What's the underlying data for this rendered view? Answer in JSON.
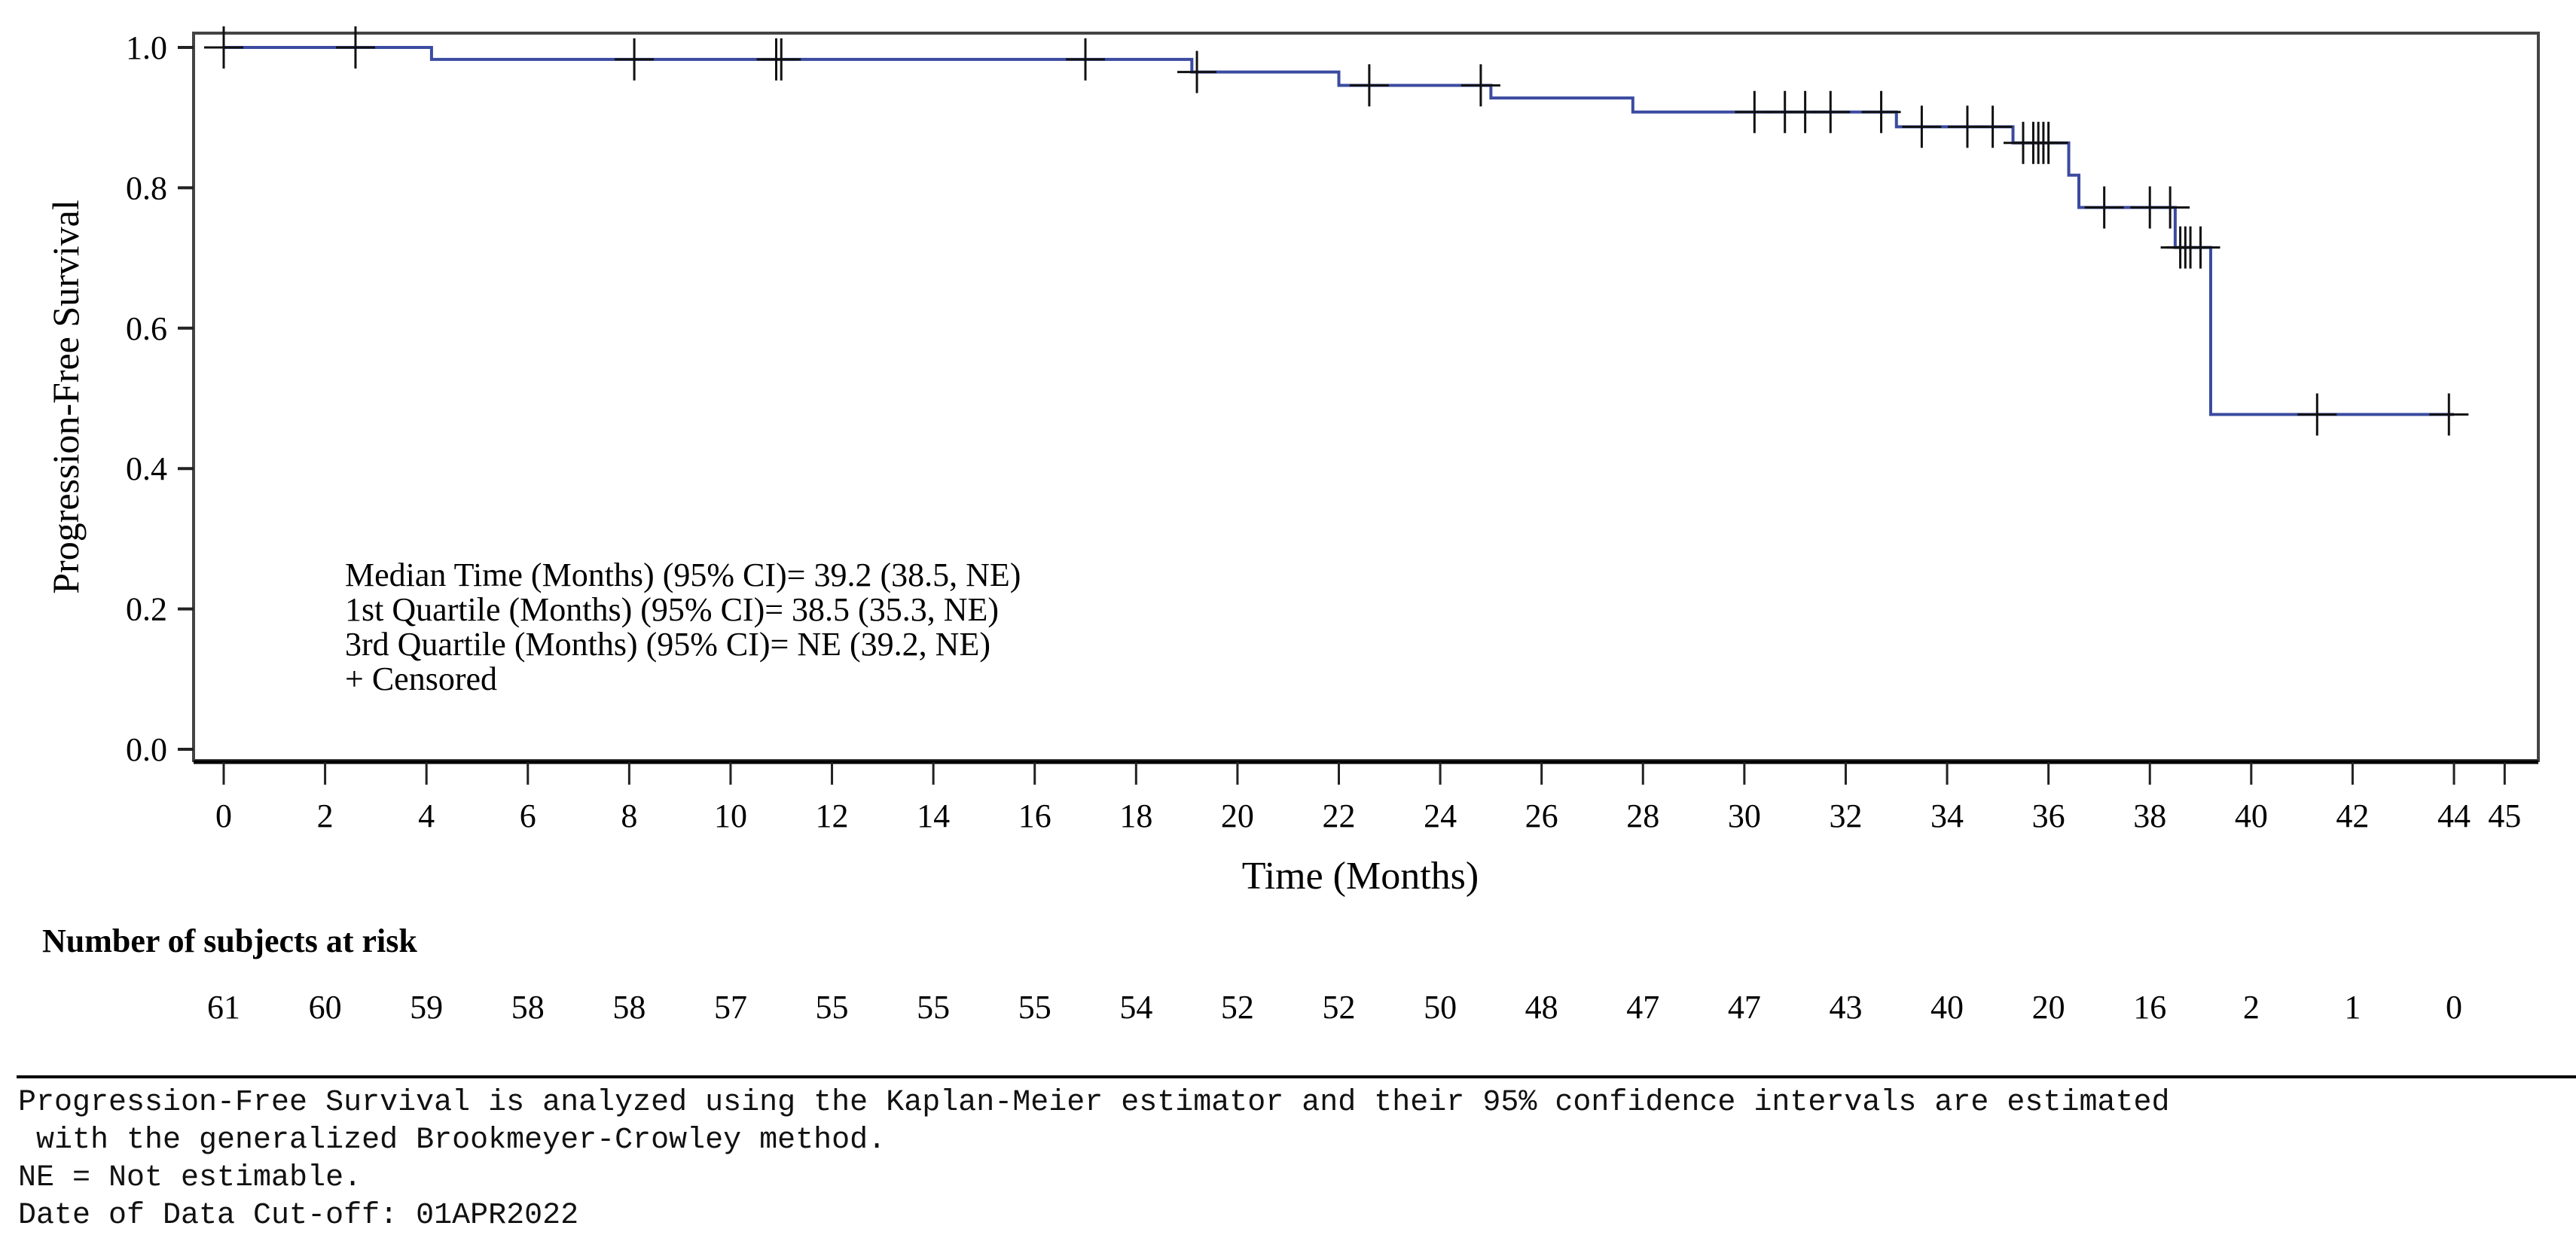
{
  "chart_data": {
    "type": "line",
    "subtype": "kaplan-meier-step",
    "title": "",
    "xlabel": "Time (Months)",
    "ylabel": "Progression-Free Survival",
    "xlim": [
      0,
      45
    ],
    "ylim": [
      0.0,
      1.0
    ],
    "x_ticks": [
      0,
      2,
      4,
      6,
      8,
      10,
      12,
      14,
      16,
      18,
      20,
      22,
      24,
      26,
      28,
      30,
      32,
      34,
      36,
      38,
      40,
      42,
      44,
      45
    ],
    "y_ticks": [
      "0.0",
      "0.2",
      "0.4",
      "0.6",
      "0.8",
      "1.0"
    ],
    "grid": false,
    "line_color": "#3b4ba0",
    "series": [
      {
        "name": "Progression-Free Survival",
        "steps": [
          {
            "x": 0.0,
            "y": 1.0
          },
          {
            "x": 4.1,
            "y": 0.983
          },
          {
            "x": 19.1,
            "y": 0.965
          },
          {
            "x": 22.0,
            "y": 0.946
          },
          {
            "x": 25.0,
            "y": 0.928
          },
          {
            "x": 27.8,
            "y": 0.908
          },
          {
            "x": 33.0,
            "y": 0.887
          },
          {
            "x": 35.3,
            "y": 0.864
          },
          {
            "x": 36.4,
            "y": 0.818
          },
          {
            "x": 36.6,
            "y": 0.772
          },
          {
            "x": 38.5,
            "y": 0.715
          },
          {
            "x": 39.2,
            "y": 0.477
          },
          {
            "x": 44.0,
            "y": 0.477
          }
        ],
        "censored": [
          {
            "x": 0.0,
            "y": 1.0
          },
          {
            "x": 2.6,
            "y": 1.0
          },
          {
            "x": 8.1,
            "y": 0.983
          },
          {
            "x": 10.9,
            "y": 0.983
          },
          {
            "x": 11.0,
            "y": 0.983
          },
          {
            "x": 17.0,
            "y": 0.983
          },
          {
            "x": 19.2,
            "y": 0.965
          },
          {
            "x": 22.6,
            "y": 0.946
          },
          {
            "x": 24.8,
            "y": 0.946
          },
          {
            "x": 30.2,
            "y": 0.908
          },
          {
            "x": 30.8,
            "y": 0.908
          },
          {
            "x": 31.2,
            "y": 0.908
          },
          {
            "x": 31.7,
            "y": 0.908
          },
          {
            "x": 32.7,
            "y": 0.908
          },
          {
            "x": 33.5,
            "y": 0.887
          },
          {
            "x": 34.4,
            "y": 0.887
          },
          {
            "x": 34.9,
            "y": 0.887
          },
          {
            "x": 35.5,
            "y": 0.864
          },
          {
            "x": 35.7,
            "y": 0.864
          },
          {
            "x": 35.8,
            "y": 0.864
          },
          {
            "x": 35.9,
            "y": 0.864
          },
          {
            "x": 36.0,
            "y": 0.864
          },
          {
            "x": 37.1,
            "y": 0.772
          },
          {
            "x": 38.0,
            "y": 0.772
          },
          {
            "x": 38.4,
            "y": 0.772
          },
          {
            "x": 38.6,
            "y": 0.715
          },
          {
            "x": 38.7,
            "y": 0.715
          },
          {
            "x": 38.8,
            "y": 0.715
          },
          {
            "x": 39.0,
            "y": 0.715
          },
          {
            "x": 41.3,
            "y": 0.477
          },
          {
            "x": 43.9,
            "y": 0.477
          }
        ]
      }
    ],
    "annotations": [
      "Median Time (Months) (95% CI)= 39.2 (38.5, NE)",
      "1st Quartile (Months) (95% CI)= 38.5 (35.3, NE)",
      "3rd Quartile (Months) (95% CI)= NE (39.2, NE)",
      "+ Censored"
    ],
    "risk_table": {
      "label": "Number of subjects at risk",
      "times": [
        0,
        2,
        4,
        6,
        8,
        10,
        12,
        14,
        16,
        18,
        20,
        22,
        24,
        26,
        28,
        30,
        32,
        34,
        36,
        38,
        40,
        42,
        44
      ],
      "counts": [
        61,
        60,
        59,
        58,
        58,
        57,
        55,
        55,
        55,
        54,
        52,
        52,
        50,
        48,
        47,
        47,
        43,
        40,
        20,
        16,
        2,
        1,
        0
      ]
    }
  },
  "labels": {
    "xlabel": "Time (Months)",
    "ylabel": "Progression-Free Survival",
    "stats": {
      "median": "Median Time (Months) (95% CI)= 39.2 (38.5, NE)",
      "q1": "1st Quartile (Months) (95% CI)= 38.5 (35.3, NE)",
      "q3": "3rd Quartile (Months) (95% CI)= NE (39.2, NE)",
      "censored": "+ Censored"
    },
    "risk_title": "Number of subjects at risk"
  },
  "footer": {
    "line1": "Progression-Free Survival is analyzed using the Kaplan-Meier estimator and their 95% confidence intervals are estimated",
    "line2": " with the generalized Brookmeyer-Crowley method.",
    "line3": "NE = Not estimable.",
    "line4": "Date of Data Cut-off: 01APR2022"
  }
}
